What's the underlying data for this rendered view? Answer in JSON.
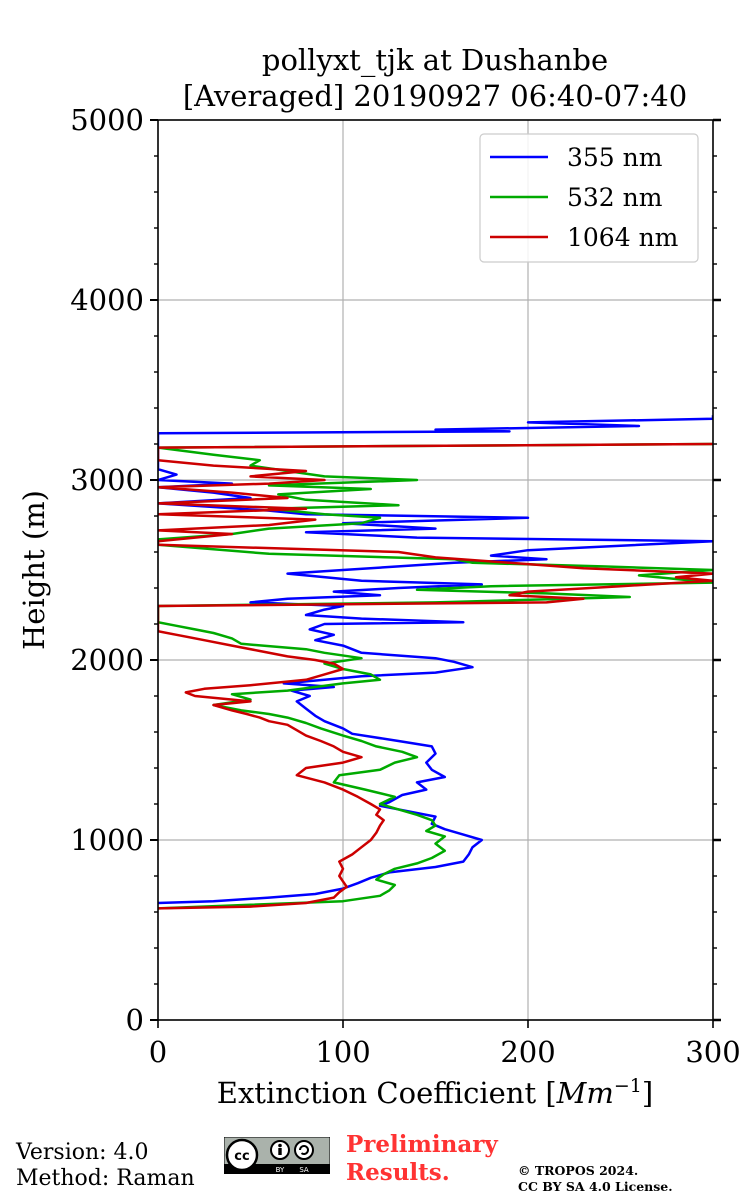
{
  "chart_data": {
    "type": "line",
    "title": "pollyxt_tjk at Dushanbe",
    "subtitle": "[Averaged] 20190927 06:40-07:40",
    "xlabel": "Extinction Coefficient [",
    "xlabel_unit": "Mm",
    "xlabel_exp": "−1",
    "xlabel_end": "]",
    "ylabel": "Height (m)",
    "xlim": [
      0,
      300
    ],
    "ylim": [
      0,
      5000
    ],
    "xticks": [
      0,
      100,
      200,
      300
    ],
    "yticks": [
      0,
      1000,
      2000,
      3000,
      4000,
      5000
    ],
    "grid": true,
    "legend_position": "top-right",
    "series": [
      {
        "name": "355 nm",
        "color": "#0000ff",
        "points": [
          [
            0,
            650
          ],
          [
            30,
            660
          ],
          [
            60,
            680
          ],
          [
            85,
            700
          ],
          [
            100,
            730
          ],
          [
            108,
            760
          ],
          [
            115,
            790
          ],
          [
            125,
            820
          ],
          [
            150,
            850
          ],
          [
            165,
            880
          ],
          [
            168,
            920
          ],
          [
            170,
            960
          ],
          [
            175,
            1000
          ],
          [
            165,
            1030
          ],
          [
            155,
            1060
          ],
          [
            148,
            1090
          ],
          [
            150,
            1130
          ],
          [
            135,
            1160
          ],
          [
            120,
            1190
          ],
          [
            125,
            1210
          ],
          [
            132,
            1250
          ],
          [
            145,
            1280
          ],
          [
            140,
            1320
          ],
          [
            155,
            1350
          ],
          [
            148,
            1390
          ],
          [
            145,
            1430
          ],
          [
            150,
            1480
          ],
          [
            148,
            1520
          ],
          [
            130,
            1550
          ],
          [
            105,
            1590
          ],
          [
            100,
            1620
          ],
          [
            90,
            1660
          ],
          [
            85,
            1690
          ],
          [
            80,
            1730
          ],
          [
            75,
            1770
          ],
          [
            82,
            1800
          ],
          [
            72,
            1830
          ],
          [
            95,
            1850
          ],
          [
            68,
            1870
          ],
          [
            90,
            1890
          ],
          [
            110,
            1910
          ],
          [
            150,
            1930
          ],
          [
            170,
            1960
          ],
          [
            160,
            1990
          ],
          [
            150,
            2010
          ],
          [
            110,
            2040
          ],
          [
            100,
            2080
          ],
          [
            85,
            2110
          ],
          [
            95,
            2140
          ],
          [
            82,
            2170
          ],
          [
            90,
            2200
          ],
          [
            165,
            2210
          ],
          [
            110,
            2230
          ],
          [
            80,
            2250
          ],
          [
            90,
            2280
          ],
          [
            100,
            2300
          ],
          [
            50,
            2320
          ],
          [
            70,
            2340
          ],
          [
            120,
            2360
          ],
          [
            95,
            2380
          ],
          [
            130,
            2400
          ],
          [
            175,
            2420
          ],
          [
            110,
            2440
          ],
          [
            80,
            2470
          ],
          [
            70,
            2480
          ],
          [
            100,
            2500
          ],
          [
            130,
            2520
          ],
          [
            160,
            2540
          ],
          [
            210,
            2560
          ],
          [
            180,
            2580
          ],
          [
            200,
            2610
          ],
          [
            300,
            2660
          ],
          [
            140,
            2680
          ],
          [
            80,
            2710
          ],
          [
            150,
            2730
          ],
          [
            100,
            2760
          ],
          [
            200,
            2790
          ],
          [
            80,
            2810
          ],
          [
            60,
            2830
          ],
          [
            0,
            2870
          ],
          [
            50,
            2900
          ],
          [
            30,
            2930
          ],
          [
            0,
            2960
          ],
          [
            40,
            2980
          ],
          [
            0,
            3000
          ],
          [
            10,
            3030
          ],
          [
            0,
            3060
          ],
          [
            0,
            3200
          ],
          [
            0,
            3260
          ],
          [
            190,
            3270
          ],
          [
            150,
            3280
          ],
          [
            260,
            3300
          ],
          [
            200,
            3320
          ],
          [
            300,
            3340
          ],
          [
            300,
            3360
          ]
        ]
      },
      {
        "name": "532 nm",
        "color": "#00aa00",
        "points": [
          [
            0,
            620
          ],
          [
            50,
            640
          ],
          [
            100,
            660
          ],
          [
            120,
            690
          ],
          [
            125,
            720
          ],
          [
            128,
            750
          ],
          [
            118,
            780
          ],
          [
            122,
            810
          ],
          [
            128,
            840
          ],
          [
            140,
            870
          ],
          [
            148,
            900
          ],
          [
            155,
            940
          ],
          [
            150,
            980
          ],
          [
            155,
            1020
          ],
          [
            145,
            1050
          ],
          [
            150,
            1080
          ],
          [
            148,
            1110
          ],
          [
            140,
            1140
          ],
          [
            130,
            1170
          ],
          [
            120,
            1200
          ],
          [
            128,
            1240
          ],
          [
            112,
            1280
          ],
          [
            95,
            1320
          ],
          [
            98,
            1360
          ],
          [
            120,
            1390
          ],
          [
            128,
            1430
          ],
          [
            140,
            1460
          ],
          [
            132,
            1490
          ],
          [
            118,
            1520
          ],
          [
            110,
            1550
          ],
          [
            100,
            1580
          ],
          [
            88,
            1620
          ],
          [
            80,
            1650
          ],
          [
            70,
            1680
          ],
          [
            60,
            1700
          ],
          [
            45,
            1720
          ],
          [
            30,
            1750
          ],
          [
            50,
            1780
          ],
          [
            40,
            1810
          ],
          [
            70,
            1830
          ],
          [
            85,
            1850
          ],
          [
            100,
            1870
          ],
          [
            120,
            1890
          ],
          [
            115,
            1920
          ],
          [
            100,
            1950
          ],
          [
            90,
            1980
          ],
          [
            110,
            2010
          ],
          [
            90,
            2040
          ],
          [
            80,
            2060
          ],
          [
            45,
            2090
          ],
          [
            40,
            2120
          ],
          [
            30,
            2150
          ],
          [
            20,
            2170
          ],
          [
            10,
            2190
          ],
          [
            0,
            2210
          ],
          [
            0,
            2250
          ],
          [
            0,
            2300
          ],
          [
            150,
            2320
          ],
          [
            255,
            2350
          ],
          [
            210,
            2370
          ],
          [
            140,
            2390
          ],
          [
            180,
            2410
          ],
          [
            300,
            2430
          ],
          [
            260,
            2470
          ],
          [
            300,
            2500
          ],
          [
            240,
            2520
          ],
          [
            170,
            2540
          ],
          [
            160,
            2560
          ],
          [
            60,
            2590
          ],
          [
            0,
            2640
          ],
          [
            0,
            2670
          ],
          [
            40,
            2700
          ],
          [
            60,
            2730
          ],
          [
            110,
            2760
          ],
          [
            120,
            2790
          ],
          [
            90,
            2810
          ],
          [
            60,
            2840
          ],
          [
            130,
            2860
          ],
          [
            80,
            2890
          ],
          [
            65,
            2920
          ],
          [
            115,
            2950
          ],
          [
            60,
            2970
          ],
          [
            140,
            3000
          ],
          [
            90,
            3020
          ],
          [
            70,
            3050
          ],
          [
            50,
            3080
          ],
          [
            55,
            3110
          ],
          [
            30,
            3140
          ],
          [
            0,
            3180
          ],
          [
            300,
            3200
          ]
        ]
      },
      {
        "name": "1064 nm",
        "color": "#cc0000",
        "points": [
          [
            0,
            620
          ],
          [
            50,
            630
          ],
          [
            80,
            650
          ],
          [
            95,
            680
          ],
          [
            98,
            710
          ],
          [
            102,
            740
          ],
          [
            100,
            770
          ],
          [
            98,
            800
          ],
          [
            100,
            840
          ],
          [
            98,
            880
          ],
          [
            105,
            920
          ],
          [
            110,
            960
          ],
          [
            115,
            1000
          ],
          [
            118,
            1040
          ],
          [
            120,
            1080
          ],
          [
            122,
            1110
          ],
          [
            118,
            1140
          ],
          [
            120,
            1170
          ],
          [
            115,
            1200
          ],
          [
            108,
            1240
          ],
          [
            100,
            1280
          ],
          [
            90,
            1320
          ],
          [
            75,
            1360
          ],
          [
            80,
            1400
          ],
          [
            100,
            1430
          ],
          [
            110,
            1460
          ],
          [
            100,
            1490
          ],
          [
            95,
            1520
          ],
          [
            88,
            1550
          ],
          [
            80,
            1580
          ],
          [
            75,
            1610
          ],
          [
            70,
            1640
          ],
          [
            60,
            1660
          ],
          [
            55,
            1680
          ],
          [
            48,
            1700
          ],
          [
            40,
            1720
          ],
          [
            30,
            1750
          ],
          [
            50,
            1770
          ],
          [
            20,
            1800
          ],
          [
            15,
            1820
          ],
          [
            25,
            1840
          ],
          [
            50,
            1860
          ],
          [
            80,
            1890
          ],
          [
            90,
            1920
          ],
          [
            100,
            1950
          ],
          [
            95,
            1980
          ],
          [
            85,
            2000
          ],
          [
            70,
            2020
          ],
          [
            55,
            2050
          ],
          [
            40,
            2080
          ],
          [
            25,
            2110
          ],
          [
            10,
            2140
          ],
          [
            0,
            2160
          ],
          [
            0,
            2200
          ],
          [
            0,
            2300
          ],
          [
            210,
            2320
          ],
          [
            230,
            2340
          ],
          [
            190,
            2360
          ],
          [
            200,
            2380
          ],
          [
            250,
            2410
          ],
          [
            300,
            2440
          ],
          [
            280,
            2460
          ],
          [
            300,
            2480
          ],
          [
            230,
            2510
          ],
          [
            190,
            2540
          ],
          [
            150,
            2570
          ],
          [
            130,
            2600
          ],
          [
            0,
            2640
          ],
          [
            0,
            2660
          ],
          [
            20,
            2680
          ],
          [
            40,
            2700
          ],
          [
            0,
            2720
          ],
          [
            60,
            2750
          ],
          [
            85,
            2780
          ],
          [
            0,
            2810
          ],
          [
            80,
            2840
          ],
          [
            0,
            2870
          ],
          [
            70,
            2900
          ],
          [
            40,
            2930
          ],
          [
            0,
            2960
          ],
          [
            60,
            2980
          ],
          [
            90,
            3000
          ],
          [
            50,
            3020
          ],
          [
            80,
            3050
          ],
          [
            30,
            3080
          ],
          [
            0,
            3110
          ],
          [
            0,
            3180
          ],
          [
            300,
            3200
          ]
        ]
      }
    ]
  },
  "footer": {
    "version": "Version: 4.0",
    "method": "Method: Raman",
    "preliminary_line1": "Preliminary",
    "preliminary_line2": "Results.",
    "copyright_line1": "© TROPOS 2024.",
    "copyright_line2": "CC BY SA 4.0 License.",
    "license_badge": {
      "cc": "cc",
      "by": "BY",
      "sa": "SA"
    }
  }
}
